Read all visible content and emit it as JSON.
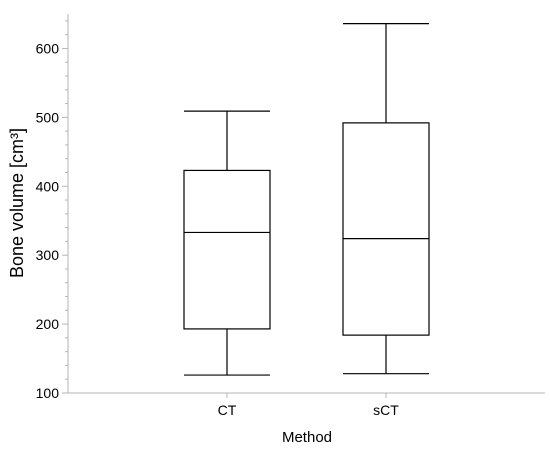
{
  "chart_data": {
    "type": "boxplot",
    "xlabel": "Method",
    "ylabel": "Bone volume [cm³]",
    "categories": [
      "CT",
      "sCT"
    ],
    "boxes": [
      {
        "category": "CT",
        "min": 126,
        "q1": 193,
        "median": 333,
        "q3": 423,
        "max": 509
      },
      {
        "category": "sCT",
        "min": 128,
        "q1": 184,
        "median": 324,
        "q3": 492,
        "max": 636
      }
    ],
    "ylim": [
      100,
      650
    ],
    "yticks": [
      100,
      200,
      300,
      400,
      500,
      600
    ],
    "minor_ticks_y": true,
    "grid": false,
    "legend": "none"
  }
}
